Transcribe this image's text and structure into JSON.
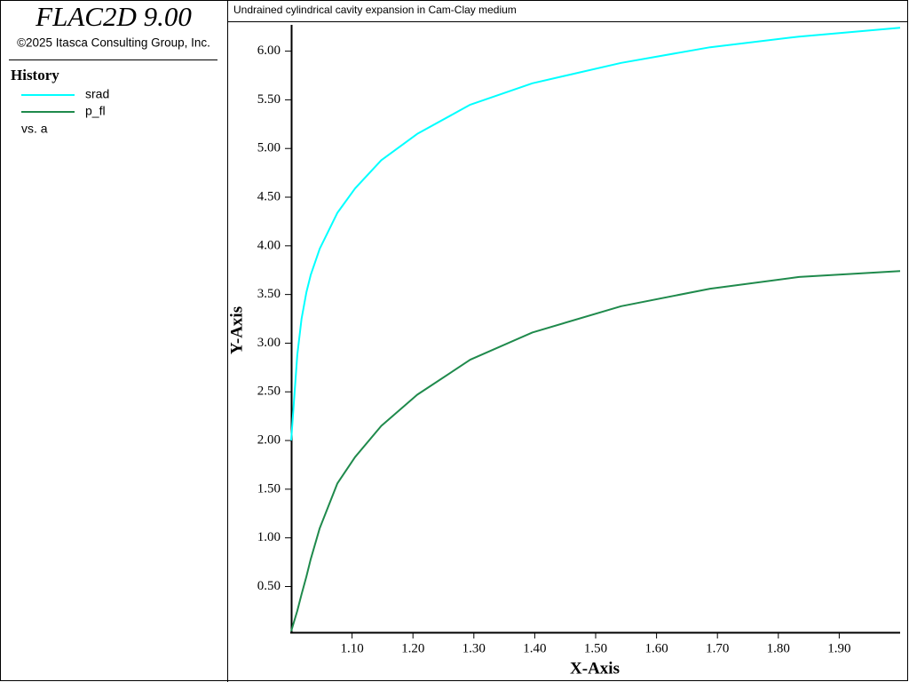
{
  "sidebar": {
    "app_title": "FLAC2D 9.00",
    "copyright": "©2025 Itasca Consulting Group, Inc.",
    "heading": "History",
    "vs_label": "vs. a"
  },
  "chart_data": {
    "type": "line",
    "title": "Undrained cylindrical cavity expansion in Cam-Clay medium",
    "xlabel": "X-Axis",
    "ylabel": "Y-Axis",
    "x": [
      1.0,
      1.01,
      1.017,
      1.025,
      1.032,
      1.047,
      1.076,
      1.105,
      1.148,
      1.207,
      1.294,
      1.396,
      1.542,
      1.688,
      1.834,
      2.0
    ],
    "series": [
      {
        "name": "srad",
        "color": "#00ffff",
        "values": [
          2.0,
          2.88,
          3.25,
          3.52,
          3.7,
          3.97,
          4.34,
          4.59,
          4.88,
          5.15,
          5.45,
          5.67,
          5.88,
          6.04,
          6.15,
          6.24
        ]
      },
      {
        "name": "p_fl",
        "color": "#1f8a4c",
        "values": [
          0.04,
          0.25,
          0.42,
          0.6,
          0.78,
          1.1,
          1.56,
          1.83,
          2.15,
          2.47,
          2.83,
          3.11,
          3.38,
          3.56,
          3.68,
          3.74
        ]
      }
    ],
    "xlim": [
      1.0,
      2.0
    ],
    "ylim": [
      0.03,
      6.27
    ],
    "xticks": [
      {
        "value": 1.1,
        "label": "1.10"
      },
      {
        "value": 1.2,
        "label": "1.20"
      },
      {
        "value": 1.3,
        "label": "1.30"
      },
      {
        "value": 1.4,
        "label": "1.40"
      },
      {
        "value": 1.5,
        "label": "1.50"
      },
      {
        "value": 1.6,
        "label": "1.60"
      },
      {
        "value": 1.7,
        "label": "1.70"
      },
      {
        "value": 1.8,
        "label": "1.80"
      },
      {
        "value": 1.9,
        "label": "1.90"
      }
    ],
    "yticks": [
      {
        "value": 0.5,
        "label": "0.50"
      },
      {
        "value": 1.0,
        "label": "1.00"
      },
      {
        "value": 1.5,
        "label": "1.50"
      },
      {
        "value": 2.0,
        "label": "2.00"
      },
      {
        "value": 2.5,
        "label": "2.50"
      },
      {
        "value": 3.0,
        "label": "3.00"
      },
      {
        "value": 3.5,
        "label": "3.50"
      },
      {
        "value": 4.0,
        "label": "4.00"
      },
      {
        "value": 4.5,
        "label": "4.50"
      },
      {
        "value": 5.0,
        "label": "5.00"
      },
      {
        "value": 5.5,
        "label": "5.50"
      },
      {
        "value": 6.0,
        "label": "6.00"
      }
    ],
    "grid": false
  }
}
